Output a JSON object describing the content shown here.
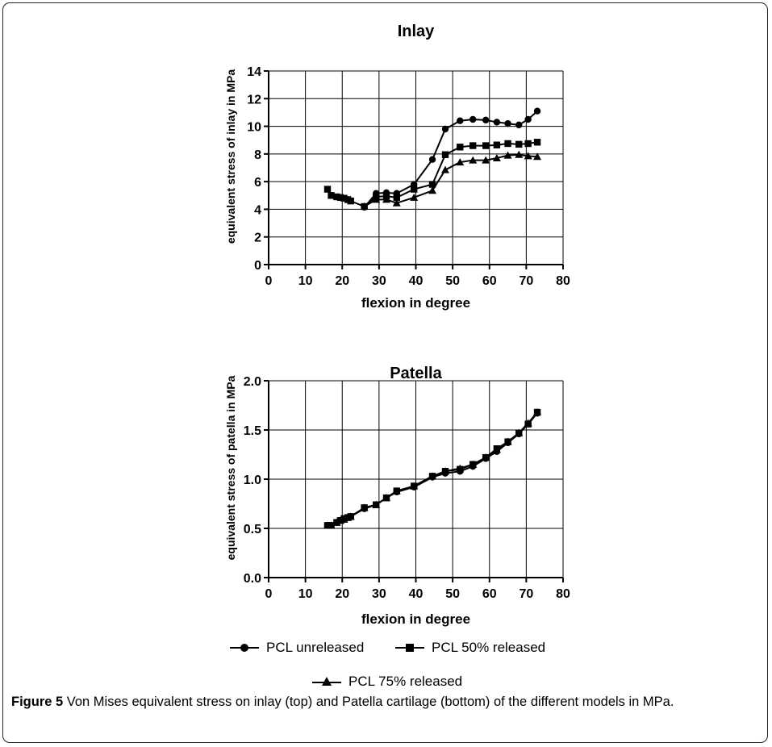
{
  "caption": {
    "label": "Figure 5",
    "text": " Von Mises equivalent stress on inlay (top) and Patella cartilage (bottom) of the different models in MPa."
  },
  "legend": {
    "unreleased": "PCL unreleased",
    "released50": "PCL 50% released",
    "released75": "PCL 75% released"
  },
  "chart_data": [
    {
      "type": "line",
      "title": "Inlay",
      "xlabel": "flexion in degree",
      "ylabel": "equivalent stress of inlay in MPa",
      "xlim": [
        0,
        80
      ],
      "ylim": [
        0,
        14
      ],
      "xticks": [
        "0",
        "10",
        "20",
        "30",
        "40",
        "50",
        "60",
        "70",
        "80"
      ],
      "yticks": [
        "0",
        "2",
        "4",
        "6",
        "8",
        "10",
        "12",
        "14"
      ],
      "grid": true,
      "series": [
        {
          "name": "PCL unreleased",
          "marker": "circle",
          "x": [
            26,
            29.2,
            32,
            34.8,
            39.5,
            44.5,
            48,
            52,
            55.5,
            59,
            62,
            65,
            68,
            70.5,
            73
          ],
          "values": [
            4.15,
            5.15,
            5.2,
            5.15,
            5.8,
            7.6,
            9.8,
            10.4,
            10.5,
            10.45,
            10.3,
            10.2,
            10.1,
            10.5,
            11.1
          ]
        },
        {
          "name": "PCL 50% released",
          "marker": "square",
          "x": [
            16,
            17,
            18.5,
            19.5,
            20.5,
            21.5,
            22.3,
            26,
            29.2,
            32,
            34.8,
            39.5,
            44.5,
            48,
            52,
            55.5,
            59,
            62,
            65,
            68,
            70.5,
            73
          ],
          "values": [
            5.45,
            5.0,
            4.9,
            4.85,
            4.8,
            4.7,
            4.6,
            4.2,
            4.9,
            4.95,
            4.85,
            5.45,
            5.8,
            7.95,
            8.5,
            8.6,
            8.6,
            8.65,
            8.75,
            8.7,
            8.75,
            8.85
          ]
        },
        {
          "name": "PCL 75% released",
          "marker": "triangle",
          "x": [
            26,
            29.2,
            32,
            34.8,
            39.5,
            44.5,
            48,
            52,
            55.5,
            59,
            62,
            65,
            68,
            70.5,
            73
          ],
          "values": [
            4.2,
            4.7,
            4.7,
            4.45,
            4.85,
            5.35,
            6.85,
            7.4,
            7.55,
            7.55,
            7.7,
            7.9,
            7.95,
            7.85,
            7.8
          ]
        }
      ]
    },
    {
      "type": "line",
      "title": "Patella",
      "xlabel": "flexion in degree",
      "ylabel": "equivalent stress of patella in MPa",
      "xlim": [
        0,
        80
      ],
      "ylim": [
        0,
        2.0
      ],
      "xticks": [
        "0",
        "10",
        "20",
        "30",
        "40",
        "50",
        "60",
        "70",
        "80"
      ],
      "yticks": [
        "0.0",
        "0.5",
        "1.0",
        "1.5",
        "2.0"
      ],
      "grid": true,
      "series": [
        {
          "name": "PCL unreleased",
          "marker": "circle",
          "x": [
            16,
            17,
            18.5,
            19.5,
            20.5,
            21.5,
            22.3,
            26,
            29.2,
            32,
            34.8,
            39.5,
            44.5,
            48,
            52,
            55.5,
            59,
            62,
            65,
            68,
            70.5,
            73
          ],
          "values": [
            0.53,
            0.53,
            0.56,
            0.58,
            0.59,
            0.61,
            0.62,
            0.7,
            0.74,
            0.81,
            0.87,
            0.92,
            1.02,
            1.06,
            1.08,
            1.13,
            1.21,
            1.28,
            1.37,
            1.46,
            1.56,
            1.67
          ]
        },
        {
          "name": "PCL 50% released",
          "marker": "square",
          "x": [
            16,
            17,
            18.5,
            19.5,
            20.5,
            21.5,
            22.3,
            26,
            29.2,
            32,
            34.8,
            39.5,
            44.5,
            48,
            52,
            55.5,
            59,
            62,
            65,
            68,
            70.5,
            73
          ],
          "values": [
            0.53,
            0.53,
            0.56,
            0.58,
            0.6,
            0.61,
            0.62,
            0.71,
            0.74,
            0.81,
            0.88,
            0.93,
            1.03,
            1.08,
            1.1,
            1.15,
            1.22,
            1.31,
            1.38,
            1.47,
            1.56,
            1.68
          ]
        },
        {
          "name": "PCL 75% released",
          "marker": "triangle",
          "x": [
            16,
            17,
            18.5,
            19.5,
            20.5,
            21.5,
            22.3,
            26,
            29.2,
            32,
            34.8,
            39.5,
            44.5,
            48,
            52,
            55.5,
            59,
            62,
            65,
            68,
            70.5,
            73
          ],
          "values": [
            0.53,
            0.53,
            0.56,
            0.58,
            0.59,
            0.61,
            0.62,
            0.71,
            0.74,
            0.81,
            0.88,
            0.93,
            1.03,
            1.08,
            1.11,
            1.15,
            1.22,
            1.3,
            1.38,
            1.47,
            1.57,
            1.68
          ]
        }
      ]
    }
  ]
}
